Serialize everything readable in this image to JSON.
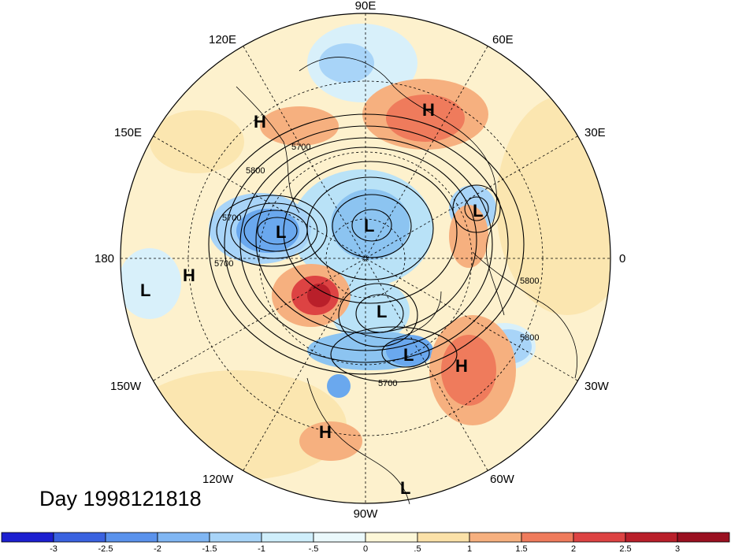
{
  "title": "Day 1998121818",
  "longitude_labels": {
    "n": "90E",
    "ne_far": "60E",
    "nw_far": "120E",
    "ne": "30E",
    "nw": "150E",
    "e": "0",
    "w": "180",
    "se": "30W",
    "sw": "150W",
    "se_far": "60W",
    "sw_far": "120W",
    "s": "90W"
  },
  "contour_labels": {
    "c1": "5700",
    "c2": "5800",
    "c3": "5700",
    "c4": "5700",
    "c5": "5800",
    "c6": "5800",
    "c7": "5700"
  },
  "centers": {
    "h1": "H",
    "h2": "H",
    "h3": "H",
    "h4": "H",
    "h5": "H",
    "l1": "L",
    "l2": "L",
    "l3": "L",
    "l4": "L",
    "l5": "L",
    "l6": "L",
    "l7": "L"
  },
  "colorbar": {
    "levels": [
      "-3",
      "-2.5",
      "-2",
      "-1.5",
      "-1",
      "-.5",
      "0",
      ".5",
      "1",
      "1.5",
      "2",
      "2.5",
      "3"
    ],
    "colors": [
      "#1c1fd0",
      "#3a62e0",
      "#5a92ec",
      "#80b6f3",
      "#a8d4f8",
      "#cfeefb",
      "#eaf8fb",
      "#fdf7d8",
      "#fbe1a8",
      "#f6b07f",
      "#ef7b5c",
      "#dd4343",
      "#b91f2a",
      "#9a1020"
    ]
  }
}
